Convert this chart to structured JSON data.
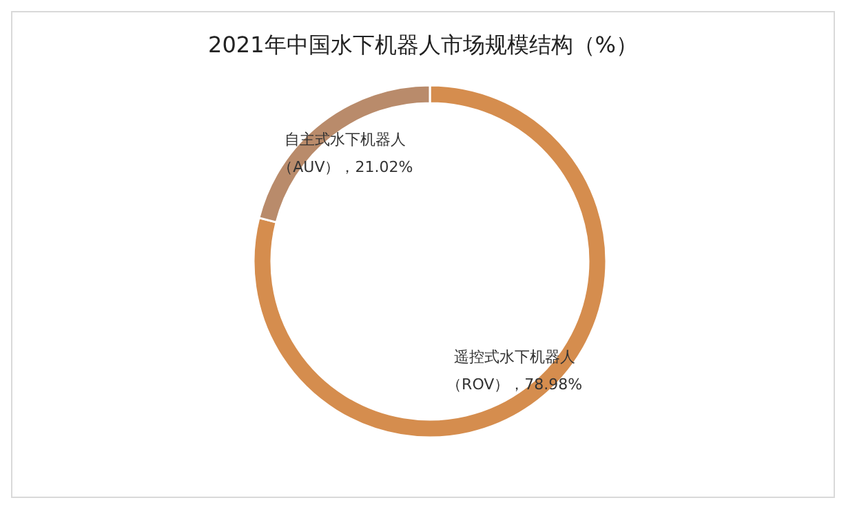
{
  "chart_data": {
    "type": "donut",
    "title": "2021年中国水下机器人市场规模结构（%）",
    "categories": [
      "遥控式水下机器人",
      "自主式水下机器人"
    ],
    "values": [
      78.98,
      21.02
    ],
    "colors": [
      "#d58d4e",
      "#b98b6b"
    ],
    "value_labels": [
      "（ROV），78.98%",
      "（AUV），21.02%"
    ]
  }
}
